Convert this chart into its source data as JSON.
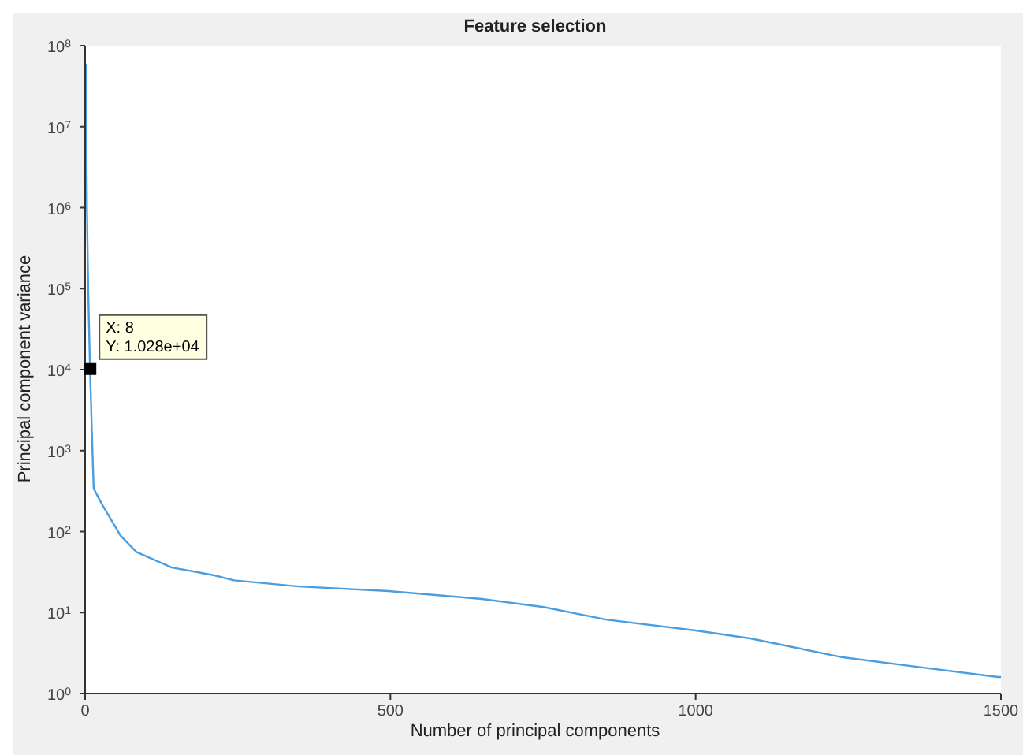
{
  "chart_data": {
    "type": "line",
    "title": "Feature selection",
    "xlabel": "Number of principal components",
    "ylabel": "Principal component variance",
    "x": [
      1,
      3,
      5,
      8,
      12,
      14,
      28,
      58,
      84,
      142,
      210,
      244,
      350,
      497,
      650,
      751,
      853,
      1000,
      1089,
      1241,
      1350,
      1495,
      1500
    ],
    "series": [
      {
        "color": "#4a9ee0",
        "values": [
          60000000,
          1000000,
          100000,
          10280,
          1000,
          340,
          215,
          89,
          56,
          36,
          29,
          25,
          21,
          18.4,
          14.7,
          11.7,
          8.2,
          6,
          4.8,
          2.8,
          2.2,
          1.6,
          1.6
        ]
      }
    ],
    "annotations": [
      {
        "text": "X: 8\nY: 1.028e+04",
        "x": 8,
        "y": 10280
      }
    ],
    "log": "y",
    "xlim": [
      0,
      1500
    ],
    "xticks": [
      0,
      500,
      1000,
      1500
    ],
    "ylim": [
      1,
      100000000
    ],
    "yticks": [
      {
        "value": 1,
        "label": "10$^{0}$"
      },
      {
        "value": 10,
        "label": "10$^{1}$"
      },
      {
        "value": 100,
        "label": "10$^{2}$"
      },
      {
        "value": 1000,
        "label": "10$^{3}$"
      },
      {
        "value": 10000,
        "label": "10$^{4}$"
      },
      {
        "value": 100000,
        "label": "10$^{5}$"
      },
      {
        "value": 1000000,
        "label": "10$^{6}$"
      },
      {
        "value": 10000000,
        "label": "10$^{7}$"
      },
      {
        "value": 100000000,
        "label": "10$^{8}$"
      }
    ],
    "grid": false,
    "legend": false,
    "marker": "none",
    "line_style": "solid"
  }
}
